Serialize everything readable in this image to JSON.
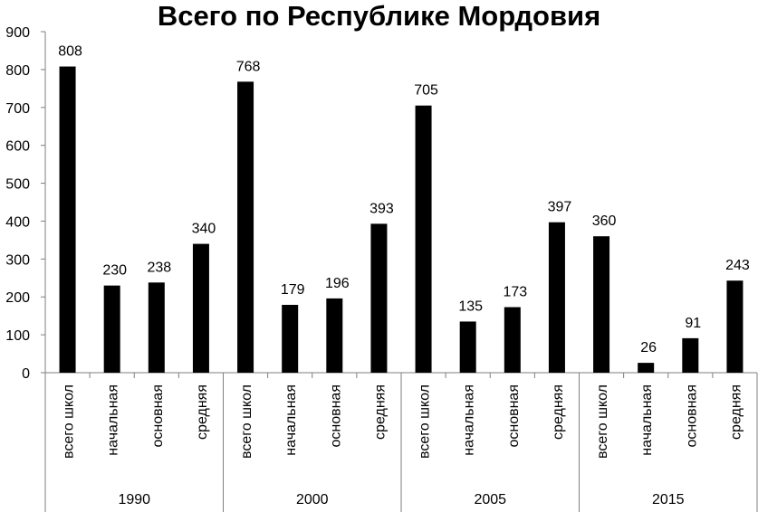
{
  "chart_data": {
    "type": "bar",
    "title": "Всего по Республике Мордовия",
    "ylim": [
      0,
      900
    ],
    "y_ticks": [
      0,
      100,
      200,
      300,
      400,
      500,
      600,
      700,
      800,
      900
    ],
    "grid": false,
    "legend": "none",
    "bar_color": "#000000",
    "groups": [
      {
        "label": "1990",
        "categories": [
          "всего школ",
          "начальная",
          "основная",
          "средняя"
        ],
        "values": [
          808,
          230,
          238,
          340
        ]
      },
      {
        "label": "2000",
        "categories": [
          "всего школ",
          "начальная",
          "основная",
          "средняя"
        ],
        "values": [
          768,
          179,
          196,
          393
        ]
      },
      {
        "label": "2005",
        "categories": [
          "всего школ",
          "начальная",
          "основная",
          "средняя"
        ],
        "values": [
          705,
          135,
          173,
          397
        ]
      },
      {
        "label": "2015",
        "categories": [
          "всего школ",
          "начальная",
          "основная",
          "средняя"
        ],
        "values": [
          360,
          26,
          91,
          243
        ]
      }
    ]
  }
}
